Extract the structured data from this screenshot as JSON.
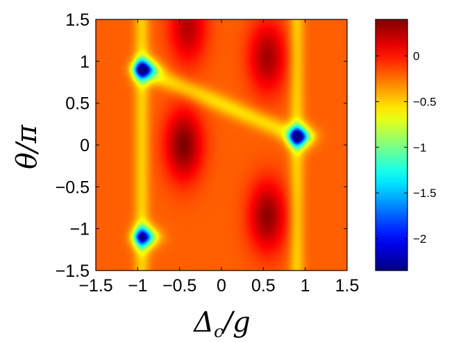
{
  "chart_data": {
    "type": "heatmap",
    "title": "",
    "xlabel": {
      "main": "Δ",
      "sub": "c",
      "rest": "/g"
    },
    "ylabel": {
      "main": "θ",
      "rest": "/π"
    },
    "xlim": [
      -1.5,
      1.5
    ],
    "ylim": [
      -1.5,
      1.5
    ],
    "xticks": [
      "−1.5",
      "−1",
      "−0.5",
      "0",
      "0.5",
      "1",
      "1.5"
    ],
    "xtick_values": [
      -1.5,
      -1,
      -0.5,
      0,
      0.5,
      1,
      1.5
    ],
    "yticks": [
      "1.5",
      "1",
      "0.5",
      "0",
      "−0.5",
      "−1",
      "−1.5"
    ],
    "ytick_values": [
      1.5,
      1,
      0.5,
      0,
      -0.5,
      -1,
      -1.5
    ],
    "colorbar": {
      "colormap": "jet",
      "range": [
        -2.35,
        0.4
      ],
      "ticks": [
        "0",
        "−0.5",
        "−1",
        "−1.5",
        "−2"
      ],
      "tick_values": [
        0,
        -0.5,
        -1,
        -1.5,
        -2
      ]
    },
    "features": {
      "baseline": -0.2,
      "minima": [
        {
          "x": -0.95,
          "y": 0.9,
          "value": -2.3
        },
        {
          "x": 0.9,
          "y": 0.1,
          "value": -2.3
        },
        {
          "x": -0.95,
          "y": -1.1,
          "value": -2.3
        }
      ],
      "maxima": [
        {
          "x": -0.45,
          "y": 0.0,
          "value": 0.4
        },
        {
          "x": 0.55,
          "y": -0.85,
          "value": 0.35
        },
        {
          "x": 0.55,
          "y": 1.05,
          "value": 0.3
        },
        {
          "x": -0.4,
          "y": 1.4,
          "value": 0.25
        }
      ]
    }
  }
}
